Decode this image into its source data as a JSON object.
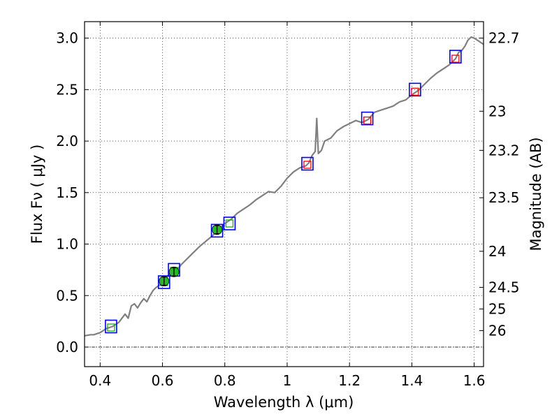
{
  "chart_data": {
    "type": "line",
    "title": "",
    "xlabel": "Wavelength  λ (μm)",
    "ylabel": "Flux  Fν  ( μJy )",
    "y2label": "Magnitude (AB)",
    "xlim": [
      0.35,
      1.63
    ],
    "ylim": [
      -0.19,
      3.16
    ],
    "grid": true,
    "grid_style": "dotted",
    "x_ticks": [
      0.4,
      0.6,
      0.8,
      1,
      1.2,
      1.4,
      1.6
    ],
    "x_tick_labels": [
      "0.4",
      "0.6",
      "0.8",
      "1",
      "1.2",
      "1.4",
      "1.6"
    ],
    "y_ticks": [
      0.0,
      0.5,
      1.0,
      1.5,
      2.0,
      2.5,
      3.0
    ],
    "y_tick_labels": [
      "0.0",
      "0.5",
      "1.0",
      "1.5",
      "2.0",
      "2.5",
      "3.0"
    ],
    "y2_ticks": [
      {
        "label": "22.7",
        "flux": 3.0
      },
      {
        "label": "23",
        "flux": 2.29
      },
      {
        "label": "23.2",
        "flux": 1.91
      },
      {
        "label": "23.5",
        "flux": 1.45
      },
      {
        "label": "24",
        "flux": 0.93
      },
      {
        "label": "24.5",
        "flux": 0.58
      },
      {
        "label": "25",
        "flux": 0.37
      },
      {
        "label": "26",
        "flux": 0.16
      }
    ],
    "zero_line": true,
    "colors": {
      "spectrum": "#808080",
      "open_square": "#0000ff",
      "model_flux_red": "#ff0000",
      "model_flux_green": "#00c000",
      "observed_point": "#22bb22"
    },
    "series": [
      {
        "kind": "spectrum",
        "x": [
          0.35,
          0.37,
          0.38,
          0.39,
          0.4,
          0.41,
          0.42,
          0.43,
          0.44,
          0.45,
          0.46,
          0.47,
          0.48,
          0.49,
          0.5,
          0.51,
          0.52,
          0.53,
          0.54,
          0.55,
          0.56,
          0.57,
          0.58,
          0.59,
          0.6,
          0.61,
          0.62,
          0.63,
          0.64,
          0.65,
          0.66,
          0.68,
          0.7,
          0.72,
          0.74,
          0.76,
          0.78,
          0.8,
          0.82,
          0.84,
          0.86,
          0.88,
          0.9,
          0.92,
          0.94,
          0.96,
          0.98,
          1.0,
          1.02,
          1.04,
          1.06,
          1.07,
          1.08,
          1.09,
          1.095,
          1.1,
          1.11,
          1.12,
          1.14,
          1.16,
          1.18,
          1.2,
          1.22,
          1.24,
          1.26,
          1.28,
          1.3,
          1.32,
          1.34,
          1.36,
          1.38,
          1.4,
          1.42,
          1.44,
          1.46,
          1.48,
          1.5,
          1.52,
          1.54,
          1.55,
          1.56,
          1.57,
          1.58,
          1.59,
          1.6,
          1.61,
          1.62,
          1.63
        ],
        "y": [
          0.11,
          0.12,
          0.12,
          0.13,
          0.14,
          0.16,
          0.18,
          0.19,
          0.2,
          0.22,
          0.24,
          0.28,
          0.32,
          0.28,
          0.4,
          0.42,
          0.38,
          0.43,
          0.47,
          0.44,
          0.5,
          0.55,
          0.58,
          0.6,
          0.63,
          0.66,
          0.7,
          0.72,
          0.74,
          0.76,
          0.8,
          0.86,
          0.92,
          0.98,
          1.03,
          1.08,
          1.14,
          1.2,
          1.24,
          1.3,
          1.34,
          1.38,
          1.43,
          1.47,
          1.51,
          1.5,
          1.56,
          1.64,
          1.7,
          1.74,
          1.76,
          1.79,
          1.86,
          1.9,
          2.22,
          1.88,
          1.91,
          2.0,
          2.03,
          2.1,
          2.14,
          2.17,
          2.2,
          2.18,
          2.21,
          2.28,
          2.3,
          2.32,
          2.34,
          2.38,
          2.4,
          2.45,
          2.49,
          2.55,
          2.61,
          2.66,
          2.7,
          2.74,
          2.8,
          2.86,
          2.88,
          2.92,
          2.98,
          3.01,
          3.0,
          2.98,
          2.96,
          2.94
        ]
      },
      {
        "kind": "open_squares",
        "x": [
          0.435,
          0.605,
          0.637,
          0.775,
          0.815,
          1.065,
          1.257,
          1.41,
          1.54
        ],
        "y": [
          0.2,
          0.63,
          0.75,
          1.13,
          1.2,
          1.78,
          2.22,
          2.5,
          2.82
        ]
      },
      {
        "kind": "model_points_green",
        "x": [
          0.435,
          0.605,
          0.637,
          0.775,
          0.815
        ],
        "y": [
          0.19,
          0.63,
          0.74,
          1.14,
          1.2
        ]
      },
      {
        "kind": "model_points_red",
        "x": [
          1.065,
          1.257,
          1.41,
          1.54
        ],
        "y": [
          1.77,
          2.2,
          2.48,
          2.8
        ]
      },
      {
        "kind": "observed_points",
        "x": [
          0.605,
          0.637,
          0.775
        ],
        "y": [
          0.64,
          0.73,
          1.14
        ],
        "err": [
          0.04,
          0.04,
          0.04
        ]
      }
    ]
  }
}
